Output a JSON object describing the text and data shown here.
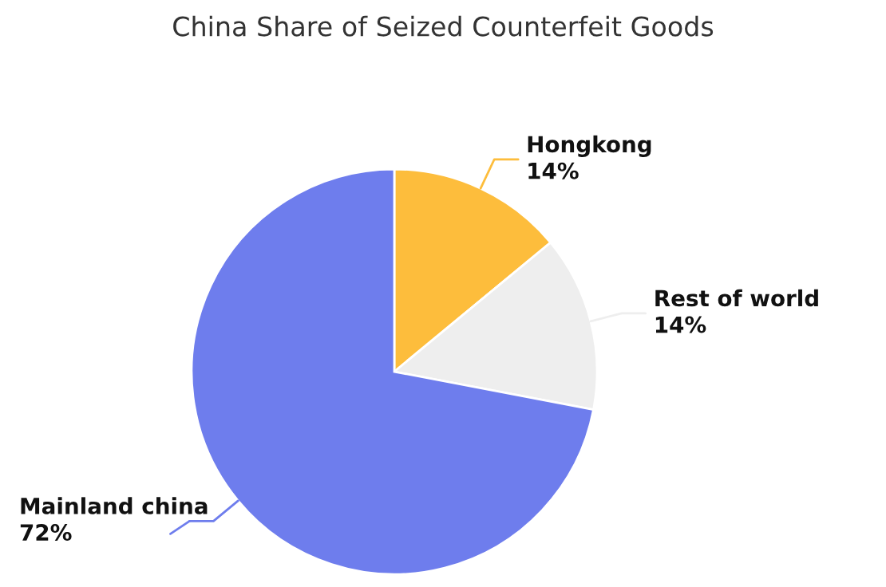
{
  "chart_data": {
    "type": "pie",
    "title": "China Share of Seized Counterfeit Goods",
    "categories": [
      "Hongkong",
      "Rest of world",
      "Mainland china"
    ],
    "values": [
      14,
      14,
      72
    ],
    "value_labels": [
      "14%",
      "14%",
      "72%"
    ],
    "colors": [
      "#fdbd3c",
      "#eeeeee",
      "#6e7ded"
    ]
  }
}
